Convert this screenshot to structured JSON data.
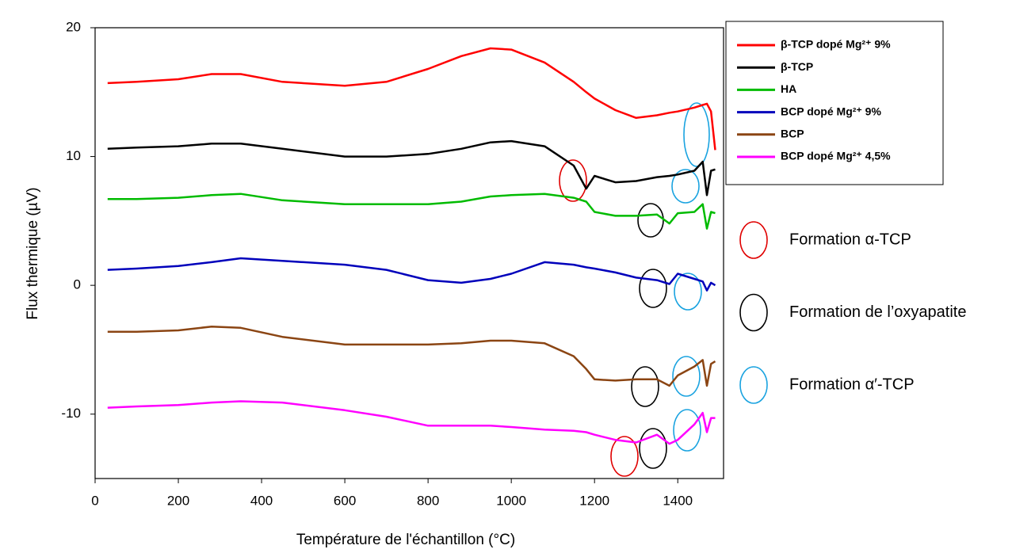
{
  "chart_data": {
    "type": "line",
    "x_label": "Température de l'échantillon (°C)",
    "y_label": "Flux thermique  (µV)",
    "x": [
      30,
      100,
      200,
      280,
      350,
      450,
      600,
      700,
      800,
      880,
      950,
      1000,
      1080,
      1150,
      1180,
      1200,
      1250,
      1300,
      1350,
      1380,
      1400,
      1440,
      1460,
      1470,
      1480,
      1490
    ],
    "series": [
      {
        "name": "β-TCP dopé Mg²⁺ 9%",
        "color": "#ff0000",
        "values": [
          15.7,
          15.8,
          16.0,
          16.4,
          16.4,
          15.8,
          15.5,
          15.8,
          16.8,
          17.8,
          18.4,
          18.3,
          17.3,
          15.8,
          15.0,
          14.5,
          13.6,
          13.0,
          13.2,
          13.4,
          13.5,
          13.8,
          14.0,
          14.1,
          13.5,
          10.5
        ]
      },
      {
        "name": "β-TCP",
        "color": "#000000",
        "values": [
          10.6,
          10.7,
          10.8,
          11.0,
          11.0,
          10.6,
          10.0,
          10.0,
          10.2,
          10.6,
          11.1,
          11.2,
          10.8,
          9.3,
          7.5,
          8.5,
          8.0,
          8.1,
          8.4,
          8.5,
          8.6,
          8.9,
          9.6,
          7.0,
          8.9,
          9.0
        ]
      },
      {
        "name": "HA",
        "color": "#00bb00",
        "values": [
          6.7,
          6.7,
          6.8,
          7.0,
          7.1,
          6.6,
          6.3,
          6.3,
          6.3,
          6.5,
          6.9,
          7.0,
          7.1,
          6.8,
          6.5,
          5.7,
          5.4,
          5.4,
          5.5,
          4.8,
          5.6,
          5.7,
          6.3,
          4.4,
          5.7,
          5.6
        ]
      },
      {
        "name": "BCP dopé Mg²⁺ 9%",
        "color": "#0000bb",
        "values": [
          1.2,
          1.3,
          1.5,
          1.8,
          2.1,
          1.9,
          1.6,
          1.2,
          0.4,
          0.2,
          0.5,
          0.9,
          1.8,
          1.6,
          1.4,
          1.3,
          1.0,
          0.6,
          0.4,
          0.1,
          0.9,
          0.5,
          0.3,
          -0.4,
          0.2,
          0.0
        ]
      },
      {
        "name": "BCP",
        "color": "#8b4513",
        "values": [
          -3.6,
          -3.6,
          -3.5,
          -3.2,
          -3.3,
          -4.0,
          -4.6,
          -4.6,
          -4.6,
          -4.5,
          -4.3,
          -4.3,
          -4.5,
          -5.5,
          -6.5,
          -7.3,
          -7.4,
          -7.3,
          -7.3,
          -7.8,
          -7.0,
          -6.3,
          -5.8,
          -7.8,
          -6.1,
          -5.9
        ]
      },
      {
        "name": "BCP dopé Mg²⁺ 4,5%",
        "color": "#ff00ff",
        "values": [
          -9.5,
          -9.4,
          -9.3,
          -9.1,
          -9.0,
          -9.1,
          -9.7,
          -10.2,
          -10.9,
          -10.9,
          -10.9,
          -11.0,
          -11.2,
          -11.3,
          -11.4,
          -11.6,
          -12.0,
          -12.2,
          -11.6,
          -12.3,
          -12.0,
          -10.8,
          -9.9,
          -11.4,
          -10.3,
          -10.3
        ]
      }
    ],
    "xlim": [
      0,
      1510
    ],
    "ylim": [
      -15,
      20
    ],
    "xticks": [
      0,
      200,
      400,
      600,
      800,
      1000,
      1200,
      1400
    ],
    "yticks": [
      -10,
      0,
      10,
      20
    ],
    "legend": "right",
    "annotations": [
      {
        "text": "Formation α-TCP",
        "color": "#e00000"
      },
      {
        "text": "Formation de l’oxyapatite",
        "color": "#000000"
      },
      {
        "text": "Formation α′-TCP",
        "color": "#1aa3e0"
      }
    ]
  }
}
